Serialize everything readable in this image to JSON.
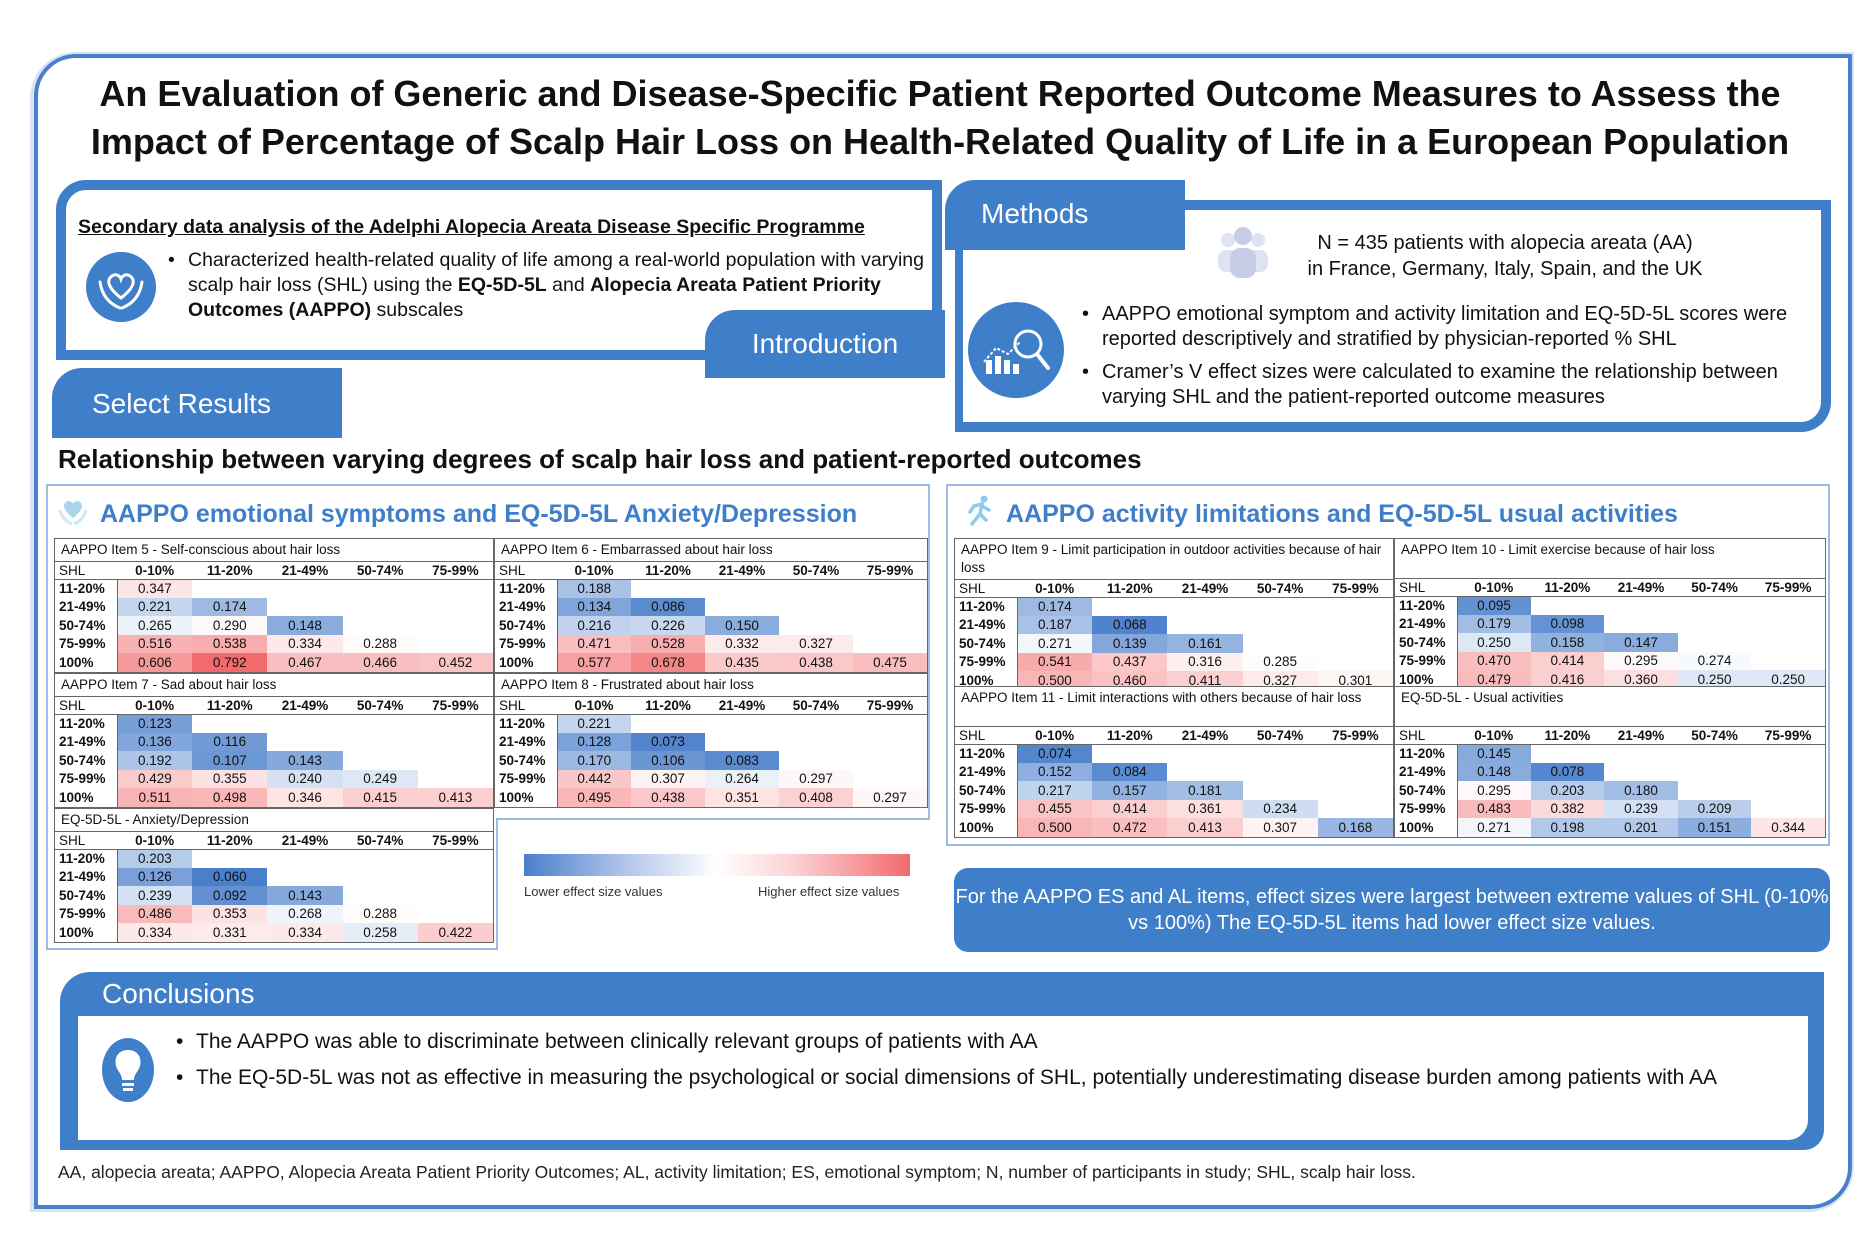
{
  "title": "An Evaluation of Generic and Disease-Specific Patient Reported Outcome Measures to Assess the Impact of Percentage of Scalp Hair Loss on Health-Related Quality of Life in a European Population",
  "introduction": {
    "tab_label": "Introduction",
    "heading": "Secondary data analysis of the Adelphi Alopecia Areata Disease Specific Programme",
    "bullet_parts": {
      "p1": "Characterized health-related quality of life among a real-world population with varying scalp hair loss (SHL) using the ",
      "b1": "EQ-5D-5L",
      "p2": " and ",
      "b2": "Alopecia Areata Patient Priority Outcomes (AAPPO)",
      "p3": " subscales"
    },
    "icon": "heart-in-hands-icon"
  },
  "methods": {
    "tab_label": "Methods",
    "population_line1": "N = 435 patients with alopecia areata (AA)",
    "population_line2": "in France, Germany, Italy, Spain, and the UK",
    "bullets": [
      "AAPPO emotional symptom and activity limitation and EQ-5D-5L scores were reported descriptively and stratified by physician-reported % SHL",
      "Cramer’s V effect sizes were calculated to examine the relationship between varying SHL and the patient-reported outcome measures"
    ],
    "icons": [
      "people-icon",
      "chart-magnifier-icon"
    ]
  },
  "results": {
    "tab_label": "Select Results",
    "heading": "Relationship between varying degrees of scalp hair loss and patient-reported outcomes",
    "left_panel_title": "AAPPO emotional symptoms and EQ-5D-5L Anxiety/Depression",
    "right_panel_title": "AAPPO activity limitations and EQ-5D-5L usual activities",
    "legend": {
      "low_label": "Lower effect size values",
      "high_label": "Higher effect size values",
      "low_color": "#4a7fcb",
      "mid_color": "#ffffff",
      "high_color": "#f26a6c"
    },
    "takeaway": "For the AAPPO ES and AL items, effect sizes were largest between extreme values of SHL (0-10% vs 100%)  The EQ-5D-5L items had lower effect size values.",
    "columns": [
      "SHL",
      "0-10%",
      "11-20%",
      "21-49%",
      "50-74%",
      "75-99%"
    ],
    "rows": [
      "11-20%",
      "21-49%",
      "50-74%",
      "75-99%",
      "100%"
    ],
    "tables": [
      {
        "id": "item5",
        "caption": "AAPPO Item 5 - Self-conscious about hair loss",
        "values": [
          [
            "0.347"
          ],
          [
            "0.221",
            "0.174"
          ],
          [
            "0.265",
            "0.290",
            "0.148"
          ],
          [
            "0.516",
            "0.538",
            "0.334",
            "0.288"
          ],
          [
            "0.606",
            "0.792",
            "0.467",
            "0.466",
            "0.452"
          ]
        ]
      },
      {
        "id": "item6",
        "caption": "AAPPO Item 6 - Embarrassed about hair loss",
        "values": [
          [
            "0.188"
          ],
          [
            "0.134",
            "0.086"
          ],
          [
            "0.216",
            "0.226",
            "0.150"
          ],
          [
            "0.471",
            "0.528",
            "0.332",
            "0.327"
          ],
          [
            "0.577",
            "0.678",
            "0.435",
            "0.438",
            "0.475"
          ]
        ]
      },
      {
        "id": "item7",
        "caption": "AAPPO Item 7 - Sad about hair loss",
        "values": [
          [
            "0.123"
          ],
          [
            "0.136",
            "0.116"
          ],
          [
            "0.192",
            "0.107",
            "0.143"
          ],
          [
            "0.429",
            "0.355",
            "0.240",
            "0.249"
          ],
          [
            "0.511",
            "0.498",
            "0.346",
            "0.415",
            "0.413"
          ]
        ]
      },
      {
        "id": "item8",
        "caption": "AAPPO Item 8 - Frustrated about hair loss",
        "values": [
          [
            "0.221"
          ],
          [
            "0.128",
            "0.073"
          ],
          [
            "0.170",
            "0.106",
            "0.083"
          ],
          [
            "0.442",
            "0.307",
            "0.264",
            "0.297"
          ],
          [
            "0.495",
            "0.438",
            "0.351",
            "0.408",
            "0.297"
          ]
        ]
      },
      {
        "id": "eq_anx",
        "caption": "EQ-5D-5L - Anxiety/Depression",
        "values": [
          [
            "0.203"
          ],
          [
            "0.126",
            "0.060"
          ],
          [
            "0.239",
            "0.092",
            "0.143"
          ],
          [
            "0.486",
            "0.353",
            "0.268",
            "0.288"
          ],
          [
            "0.334",
            "0.331",
            "0.334",
            "0.258",
            "0.422"
          ]
        ]
      },
      {
        "id": "item9",
        "caption": "AAPPO Item 9 - Limit participation in outdoor activities because of hair loss",
        "values": [
          [
            "0.174"
          ],
          [
            "0.187",
            "0.068"
          ],
          [
            "0.271",
            "0.139",
            "0.161"
          ],
          [
            "0.541",
            "0.437",
            "0.316",
            "0.285"
          ],
          [
            "0.500",
            "0.460",
            "0.411",
            "0.327",
            "0.301"
          ]
        ]
      },
      {
        "id": "item10",
        "caption": "AAPPO Item 10 - Limit exercise because of hair loss",
        "values": [
          [
            "0.095"
          ],
          [
            "0.179",
            "0.098"
          ],
          [
            "0.250",
            "0.158",
            "0.147"
          ],
          [
            "0.470",
            "0.414",
            "0.295",
            "0.274"
          ],
          [
            "0.479",
            "0.416",
            "0.360",
            "0.250",
            "0.250"
          ]
        ]
      },
      {
        "id": "item11",
        "caption": "AAPPO Item 11 - Limit interactions with others because of hair loss",
        "values": [
          [
            "0.074"
          ],
          [
            "0.152",
            "0.084"
          ],
          [
            "0.217",
            "0.157",
            "0.181"
          ],
          [
            "0.455",
            "0.414",
            "0.361",
            "0.234"
          ],
          [
            "0.500",
            "0.472",
            "0.413",
            "0.307",
            "0.168"
          ]
        ]
      },
      {
        "id": "eq_usual",
        "caption": "EQ-5D-5L - Usual activities",
        "values": [
          [
            "0.145"
          ],
          [
            "0.148",
            "0.078"
          ],
          [
            "0.295",
            "0.203",
            "0.180"
          ],
          [
            "0.483",
            "0.382",
            "0.239",
            "0.209"
          ],
          [
            "0.271",
            "0.198",
            "0.201",
            "0.151",
            "0.344"
          ]
        ]
      }
    ]
  },
  "conclusions": {
    "tab_label": "Conclusions",
    "bullets": [
      "The AAPPO was able to discriminate between clinically relevant groups of patients with AA",
      "The EQ-5D-5L was not as effective in measuring the psychological or social dimensions of SHL, potentially underestimating disease burden among patients with AA"
    ],
    "icon": "lightbulb-icon"
  },
  "footnote": "AA, alopecia areata; AAPPO, Alopecia Areata Patient Priority Outcomes; AL, activity limitation; ES, emotional symptom; N, number of participants in study; SHL, scalp hair loss."
}
